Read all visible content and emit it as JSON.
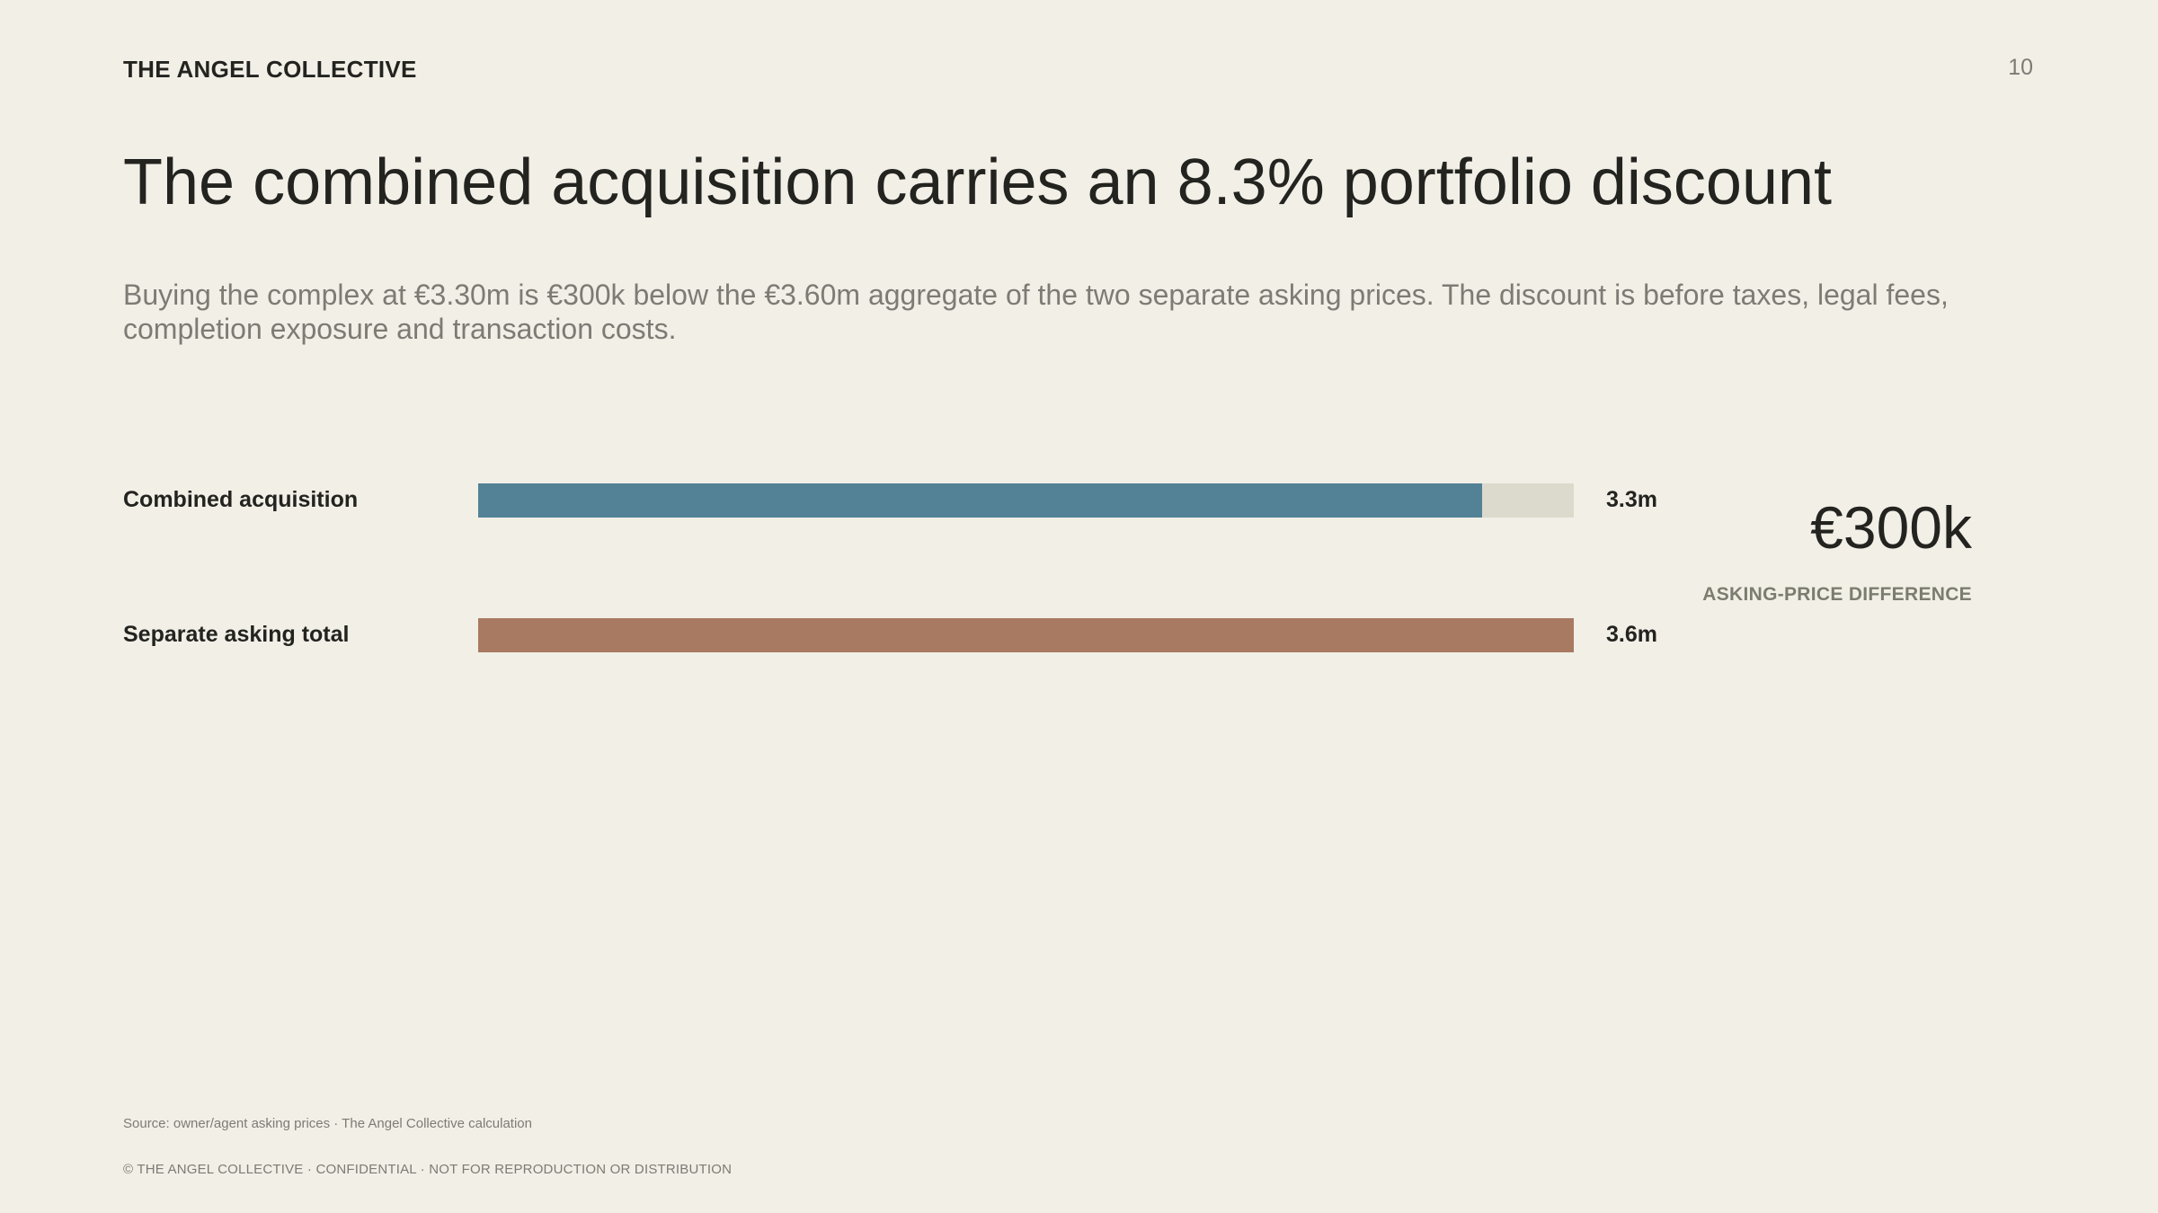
{
  "header": {
    "brand": "THE ANGEL COLLECTIVE",
    "page_number": "10"
  },
  "title": "The combined acquisition carries an 8.3% portfolio discount",
  "subtitle": "Buying the complex at €3.30m is €300k below the €3.60m aggregate of the two separate asking prices. The discount is before taxes, legal fees, completion exposure and transaction costs.",
  "chart_data": {
    "type": "bar",
    "orientation": "horizontal",
    "categories": [
      "Combined acquisition",
      "Separate asking total"
    ],
    "values": [
      3.3,
      3.6
    ],
    "value_labels": [
      "3.3m",
      "3.6m"
    ],
    "unit": "€m",
    "xlim": [
      0,
      3.6
    ],
    "colors": [
      "#538296",
      "#a87a61"
    ],
    "track_color": "#dcd9cd",
    "grid": false
  },
  "kpi": {
    "value": "€300k",
    "label": "ASKING-PRICE DIFFERENCE"
  },
  "source": "Source: owner/agent asking prices · The Angel Collective calculation",
  "footer": "© THE ANGEL COLLECTIVE · CONFIDENTIAL · NOT FOR REPRODUCTION OR DISTRIBUTION"
}
